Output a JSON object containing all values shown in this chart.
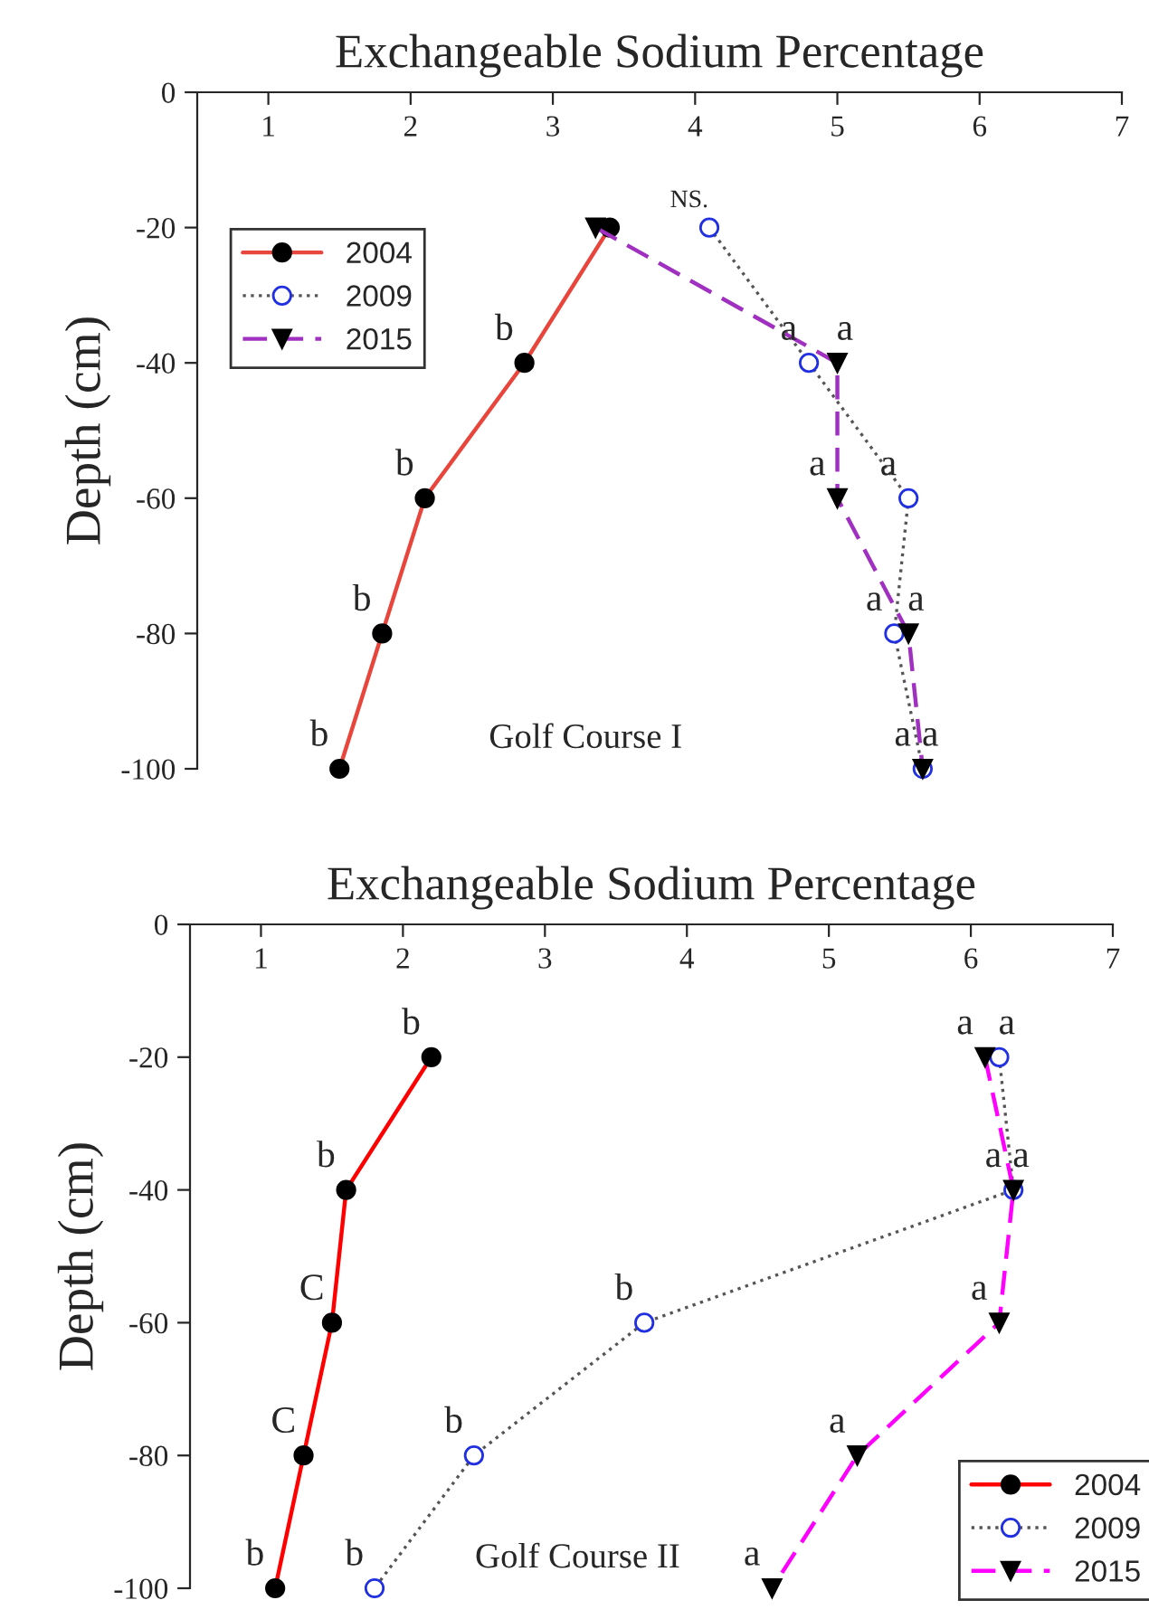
{
  "chart_data": [
    {
      "type": "line",
      "title": "Exchangeable Sodium Percentage",
      "ylabel": "Depth (cm)",
      "xlim": [
        0.5,
        7
      ],
      "xticks": [
        1,
        2,
        3,
        4,
        5,
        6,
        7
      ],
      "ylim": [
        -100,
        0
      ],
      "yticks": [
        0,
        -20,
        -40,
        -60,
        -80,
        -100
      ],
      "grid": false,
      "legend": "top left",
      "series": [
        {
          "name": "2004",
          "color": "#e8463c",
          "marker": "circle",
          "line_style": "solid",
          "x": [
            3.4,
            2.8,
            2.1,
            1.8,
            1.5
          ],
          "values": [
            -20,
            -40,
            -60,
            -80,
            -100
          ]
        },
        {
          "name": "2009",
          "color": "#555555",
          "marker": "circle",
          "line_style": "dotted",
          "x": [
            4.1,
            4.8,
            5.5,
            5.4,
            5.6
          ],
          "values": [
            -20,
            -40,
            -60,
            -80,
            -100
          ]
        },
        {
          "name": "2015",
          "color": "#a030c0",
          "marker": "triangle",
          "line_style": "dashed",
          "x": [
            3.3,
            5.0,
            5.0,
            5.5,
            5.6
          ],
          "values": [
            -20,
            -40,
            -60,
            -80,
            -100
          ]
        }
      ],
      "annotations": [
        "Golf Course I",
        {
          "text": "NS.",
          "x": 4.1,
          "y": -20
        },
        {
          "text": "b",
          "x": 2.8,
          "y": -40
        },
        {
          "text": "b",
          "x": 2.1,
          "y": -60
        },
        {
          "text": "b",
          "x": 1.8,
          "y": -80
        },
        {
          "text": "b",
          "x": 1.5,
          "y": -100
        },
        {
          "text": "a",
          "x": 4.8,
          "y": -40
        },
        {
          "text": "a",
          "x": 5.0,
          "y": -40
        },
        {
          "text": "a",
          "x": 5.0,
          "y": -60
        },
        {
          "text": "a",
          "x": 5.5,
          "y": -60
        },
        {
          "text": "a",
          "x": 5.4,
          "y": -80
        },
        {
          "text": "a",
          "x": 5.5,
          "y": -80
        },
        {
          "text": "a",
          "x": 5.6,
          "y": -100
        },
        {
          "text": "a",
          "x": 5.6,
          "y": -100
        }
      ]
    },
    {
      "type": "line",
      "title": "Exchangeable Sodium Percentage",
      "ylabel": "Depth (cm)",
      "xlim": [
        0.5,
        7
      ],
      "xticks": [
        1,
        2,
        3,
        4,
        5,
        6,
        7
      ],
      "ylim": [
        -100,
        0
      ],
      "yticks": [
        0,
        -20,
        -40,
        -60,
        -80,
        -100
      ],
      "grid": false,
      "legend": "bottom right",
      "series": [
        {
          "name": "2004",
          "color": "#ff0000",
          "marker": "circle",
          "line_style": "solid",
          "x": [
            2.2,
            1.6,
            1.5,
            1.3,
            1.1
          ],
          "values": [
            -20,
            -40,
            -60,
            -80,
            -100
          ]
        },
        {
          "name": "2009",
          "color": "#555555",
          "marker": "circle",
          "line_style": "dotted",
          "x": [
            6.2,
            6.3,
            3.7,
            2.5,
            1.8
          ],
          "values": [
            -20,
            -40,
            -60,
            -80,
            -100
          ]
        },
        {
          "name": "2015",
          "color": "#ff00ff",
          "marker": "triangle",
          "line_style": "dashed",
          "x": [
            6.1,
            6.3,
            6.2,
            5.2,
            4.6
          ],
          "values": [
            -20,
            -40,
            -60,
            -80,
            -100
          ]
        }
      ],
      "annotations": [
        "Golf Course II",
        {
          "text": "b",
          "x": 2.2,
          "y": -20
        },
        {
          "text": "b",
          "x": 1.6,
          "y": -40
        },
        {
          "text": "C",
          "x": 1.5,
          "y": -60
        },
        {
          "text": "C",
          "x": 1.3,
          "y": -80
        },
        {
          "text": "b",
          "x": 1.1,
          "y": -100
        },
        {
          "text": "a",
          "x": 6.1,
          "y": -20
        },
        {
          "text": "a",
          "x": 6.2,
          "y": -20
        },
        {
          "text": "a",
          "x": 6.3,
          "y": -40
        },
        {
          "text": "a",
          "x": 6.3,
          "y": -40
        },
        {
          "text": "b",
          "x": 3.7,
          "y": -60
        },
        {
          "text": "a",
          "x": 6.2,
          "y": -60
        },
        {
          "text": "b",
          "x": 2.5,
          "y": -80
        },
        {
          "text": "a",
          "x": 5.2,
          "y": -80
        },
        {
          "text": "b",
          "x": 1.8,
          "y": -100
        },
        {
          "text": "a",
          "x": 4.6,
          "y": -100
        }
      ]
    }
  ]
}
